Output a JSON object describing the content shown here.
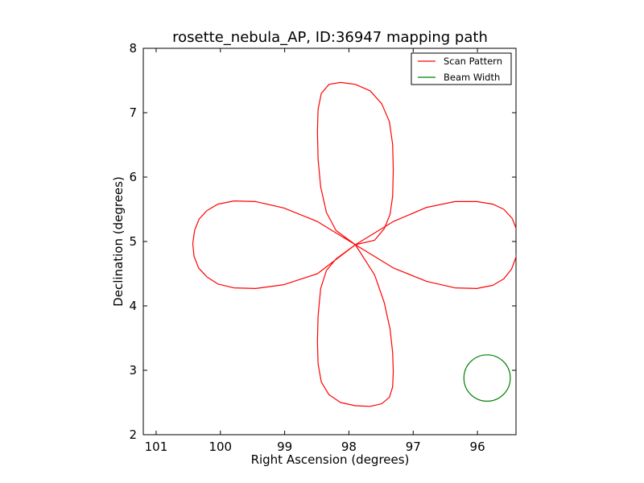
{
  "chart_data": {
    "type": "line",
    "title": "rosette_nebula_AP, ID:36947 mapping path",
    "xlabel": "Right Ascension (degrees)",
    "ylabel": "Declination (degrees)",
    "xlim": [
      101.2,
      95.4
    ],
    "ylim": [
      2,
      8
    ],
    "x_inverted": true,
    "xticks": [
      101,
      100,
      99,
      98,
      97,
      96
    ],
    "yticks": [
      2,
      3,
      4,
      5,
      6,
      7,
      8
    ],
    "grid": false,
    "legend_position": "top-right",
    "series": [
      {
        "name": "Scan Pattern",
        "color": "#ff0000",
        "pattern": "four-petal rosette",
        "center": [
          97.9,
          4.95
        ],
        "petal_radius_deg": 2.5,
        "x": [
          97.9,
          98.49,
          99.01,
          99.45,
          99.79,
          100.04,
          100.21,
          100.33,
          100.4,
          100.43,
          100.41,
          100.34,
          100.21,
          100.04,
          99.79,
          99.45,
          99.01,
          98.49,
          97.9,
          97.6,
          97.45,
          97.36,
          97.32,
          97.31,
          97.32,
          97.37,
          97.49,
          97.67,
          97.9,
          98.13,
          98.31,
          98.43,
          98.48,
          98.49,
          98.48,
          98.44,
          98.35,
          98.2,
          97.9,
          97.31,
          96.79,
          96.35,
          96.01,
          95.76,
          95.59,
          95.47,
          95.4,
          95.37,
          95.39,
          95.46,
          95.59,
          95.76,
          96.01,
          96.35,
          96.79,
          97.31,
          97.9,
          98.2,
          98.35,
          98.44,
          98.48,
          98.49,
          98.48,
          98.43,
          98.31,
          98.13,
          97.9,
          97.67,
          97.49,
          97.37,
          97.32,
          97.31,
          97.32,
          97.36,
          97.45,
          97.6,
          97.9
        ],
        "y": [
          4.95,
          5.31,
          5.52,
          5.62,
          5.63,
          5.58,
          5.48,
          5.35,
          5.18,
          4.97,
          4.77,
          4.59,
          4.45,
          4.34,
          4.28,
          4.27,
          4.33,
          4.5,
          4.95,
          4.48,
          4.05,
          3.64,
          3.28,
          2.98,
          2.74,
          2.58,
          2.48,
          2.44,
          2.45,
          2.5,
          2.62,
          2.82,
          3.1,
          3.44,
          3.84,
          4.27,
          4.55,
          4.73,
          4.95,
          4.59,
          4.38,
          4.28,
          4.27,
          4.32,
          4.42,
          4.57,
          4.76,
          4.97,
          5.18,
          5.36,
          5.5,
          5.58,
          5.62,
          5.62,
          5.53,
          5.31,
          4.95,
          5.17,
          5.45,
          5.85,
          6.28,
          6.71,
          7.05,
          7.3,
          7.44,
          7.47,
          7.44,
          7.34,
          7.14,
          6.86,
          6.51,
          6.11,
          5.7,
          5.42,
          5.2,
          5.02,
          4.95
        ]
      },
      {
        "name": "Beam Width",
        "color": "#008000",
        "shape": "circle",
        "center": [
          95.85,
          2.88
        ],
        "radius_deg": 0.36
      }
    ]
  }
}
